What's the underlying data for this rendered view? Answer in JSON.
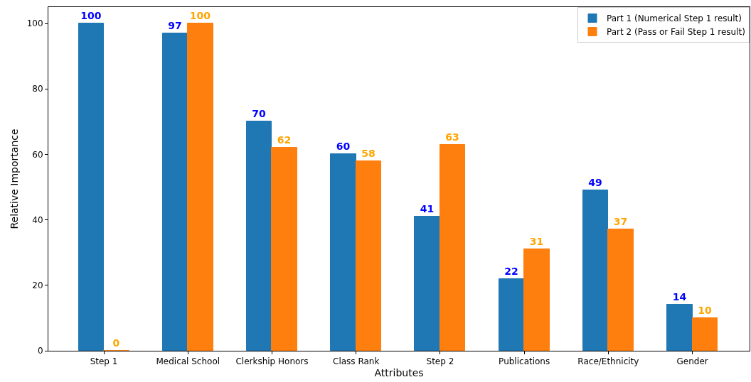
{
  "chart_data": {
    "type": "bar",
    "xlabel": "Attributes",
    "ylabel": "Relative Importance",
    "categories": [
      "Step 1",
      "Medical School",
      "Clerkship Honors",
      "Class Rank",
      "Step 2",
      "Publications",
      "Race/Ethnicity",
      "Gender"
    ],
    "series": [
      {
        "name": "Part 1 (Numerical Step 1 result)",
        "color": "#1f77b4",
        "values": [
          100,
          97,
          70,
          60,
          41,
          22,
          49,
          14
        ]
      },
      {
        "name": "Part 2 (Pass or Fail Step 1 result)",
        "color": "#ff7f0e",
        "values": [
          0,
          100,
          62,
          58,
          63,
          31,
          37,
          10
        ]
      }
    ],
    "ylim": [
      0,
      105
    ],
    "yticks": [
      0,
      20,
      40,
      60,
      80,
      100
    ],
    "grid": false,
    "legend": "top right",
    "data_labels": true
  }
}
